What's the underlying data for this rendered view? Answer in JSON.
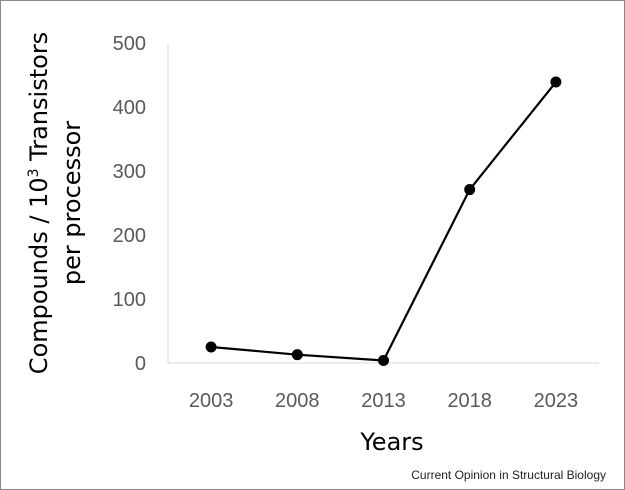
{
  "chart_data": {
    "type": "line",
    "categories": [
      "2003",
      "2008",
      "2013",
      "2018",
      "2023"
    ],
    "series": [
      {
        "values": [
          25,
          13,
          4,
          271,
          439
        ]
      }
    ],
    "ylim": [
      0,
      500
    ],
    "yticks": [
      "0",
      "100",
      "200",
      "300",
      "400",
      "500"
    ],
    "xlabel": "Years",
    "ylabel_line1_pre": "Compounds / 10",
    "ylabel_line1_sup": "3",
    "ylabel_line1_post": " Transistors",
    "ylabel_line2": "per processor",
    "grid": false,
    "line_color": "#000000"
  },
  "source": "Current Opinion in Structural Biology"
}
